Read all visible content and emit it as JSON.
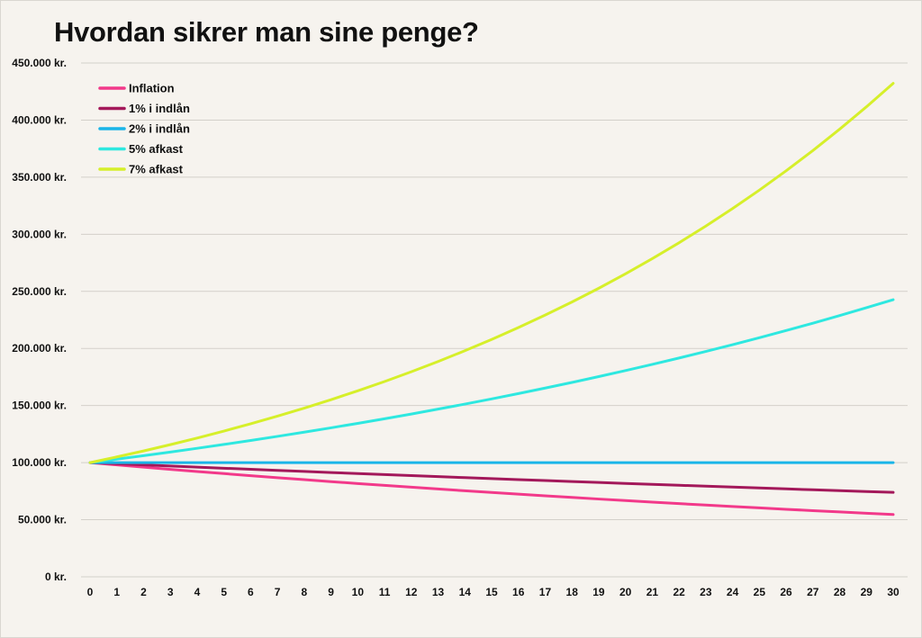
{
  "title": "Hvordan sikrer man sine penge?",
  "chart_data": {
    "type": "line",
    "title": "Hvordan sikrer man sine penge?",
    "xlabel": "",
    "ylabel": "",
    "x": [
      0,
      1,
      2,
      3,
      4,
      5,
      6,
      7,
      8,
      9,
      10,
      11,
      12,
      13,
      14,
      15,
      16,
      17,
      18,
      19,
      20,
      21,
      22,
      23,
      24,
      25,
      26,
      27,
      28,
      29,
      30
    ],
    "ylim": [
      0,
      450000
    ],
    "yticks": [
      0,
      50000,
      100000,
      150000,
      200000,
      250000,
      300000,
      350000,
      400000,
      450000
    ],
    "ytick_labels": [
      "0 kr.",
      "50.000 kr.",
      "100.000 kr.",
      "150.000 kr.",
      "200.000 kr.",
      "250.000 kr.",
      "300.000 kr.",
      "350.000 kr.",
      "400.000 kr.",
      "450.000 kr."
    ],
    "grid": "horizontal",
    "legend_position": "top-left",
    "series": [
      {
        "name": "Inflation",
        "color": "#f2398a",
        "values": [
          100000,
          98000,
          96040,
          94119,
          92237,
          90392,
          88584,
          86813,
          85076,
          83375,
          81707,
          80073,
          78472,
          76902,
          75364,
          73857,
          72380,
          70932,
          69513,
          68123,
          66761,
          65425,
          64117,
          62835,
          61578,
          60346,
          59139,
          57957,
          56797,
          55661,
          54548
        ]
      },
      {
        "name": "1% i indlån",
        "color": "#a3185a",
        "values": [
          100000,
          99000,
          98010,
          97030,
          96060,
          95099,
          94148,
          93207,
          92274,
          91352,
          90438,
          89534,
          88638,
          87752,
          86875,
          86006,
          85146,
          84294,
          83451,
          82617,
          81791,
          80973,
          80163,
          79361,
          78568,
          77782,
          77004,
          76234,
          75472,
          74717,
          73970
        ]
      },
      {
        "name": "2% i indlån",
        "color": "#1ab5e8",
        "values": [
          100000,
          100000,
          100000,
          100000,
          100000,
          100000,
          100000,
          100000,
          100000,
          100000,
          100000,
          100000,
          100000,
          100000,
          100000,
          100000,
          100000,
          100000,
          100000,
          100000,
          100000,
          100000,
          100000,
          100000,
          100000,
          100000,
          100000,
          100000,
          100000,
          100000,
          100000
        ]
      },
      {
        "name": "5% afkast",
        "color": "#2ee8e0",
        "values": [
          100000,
          103000,
          106090,
          109273,
          112551,
          115927,
          119405,
          122987,
          126677,
          130477,
          134392,
          138423,
          142576,
          146853,
          151259,
          155797,
          160471,
          165285,
          170243,
          175351,
          180611,
          186029,
          191610,
          197359,
          203279,
          209378,
          215659,
          222129,
          228793,
          235657,
          242726
        ]
      },
      {
        "name": "7% afkast",
        "color": "#d6ef2a",
        "values": [
          100000,
          105000,
          110250,
          115763,
          121551,
          127628,
          134010,
          140710,
          147746,
          155133,
          162889,
          171034,
          179586,
          188565,
          197993,
          207893,
          218287,
          229202,
          240662,
          252695,
          265330,
          278596,
          292526,
          307152,
          322510,
          338635,
          355567,
          373346,
          392013,
          411614,
          432194
        ]
      }
    ]
  }
}
